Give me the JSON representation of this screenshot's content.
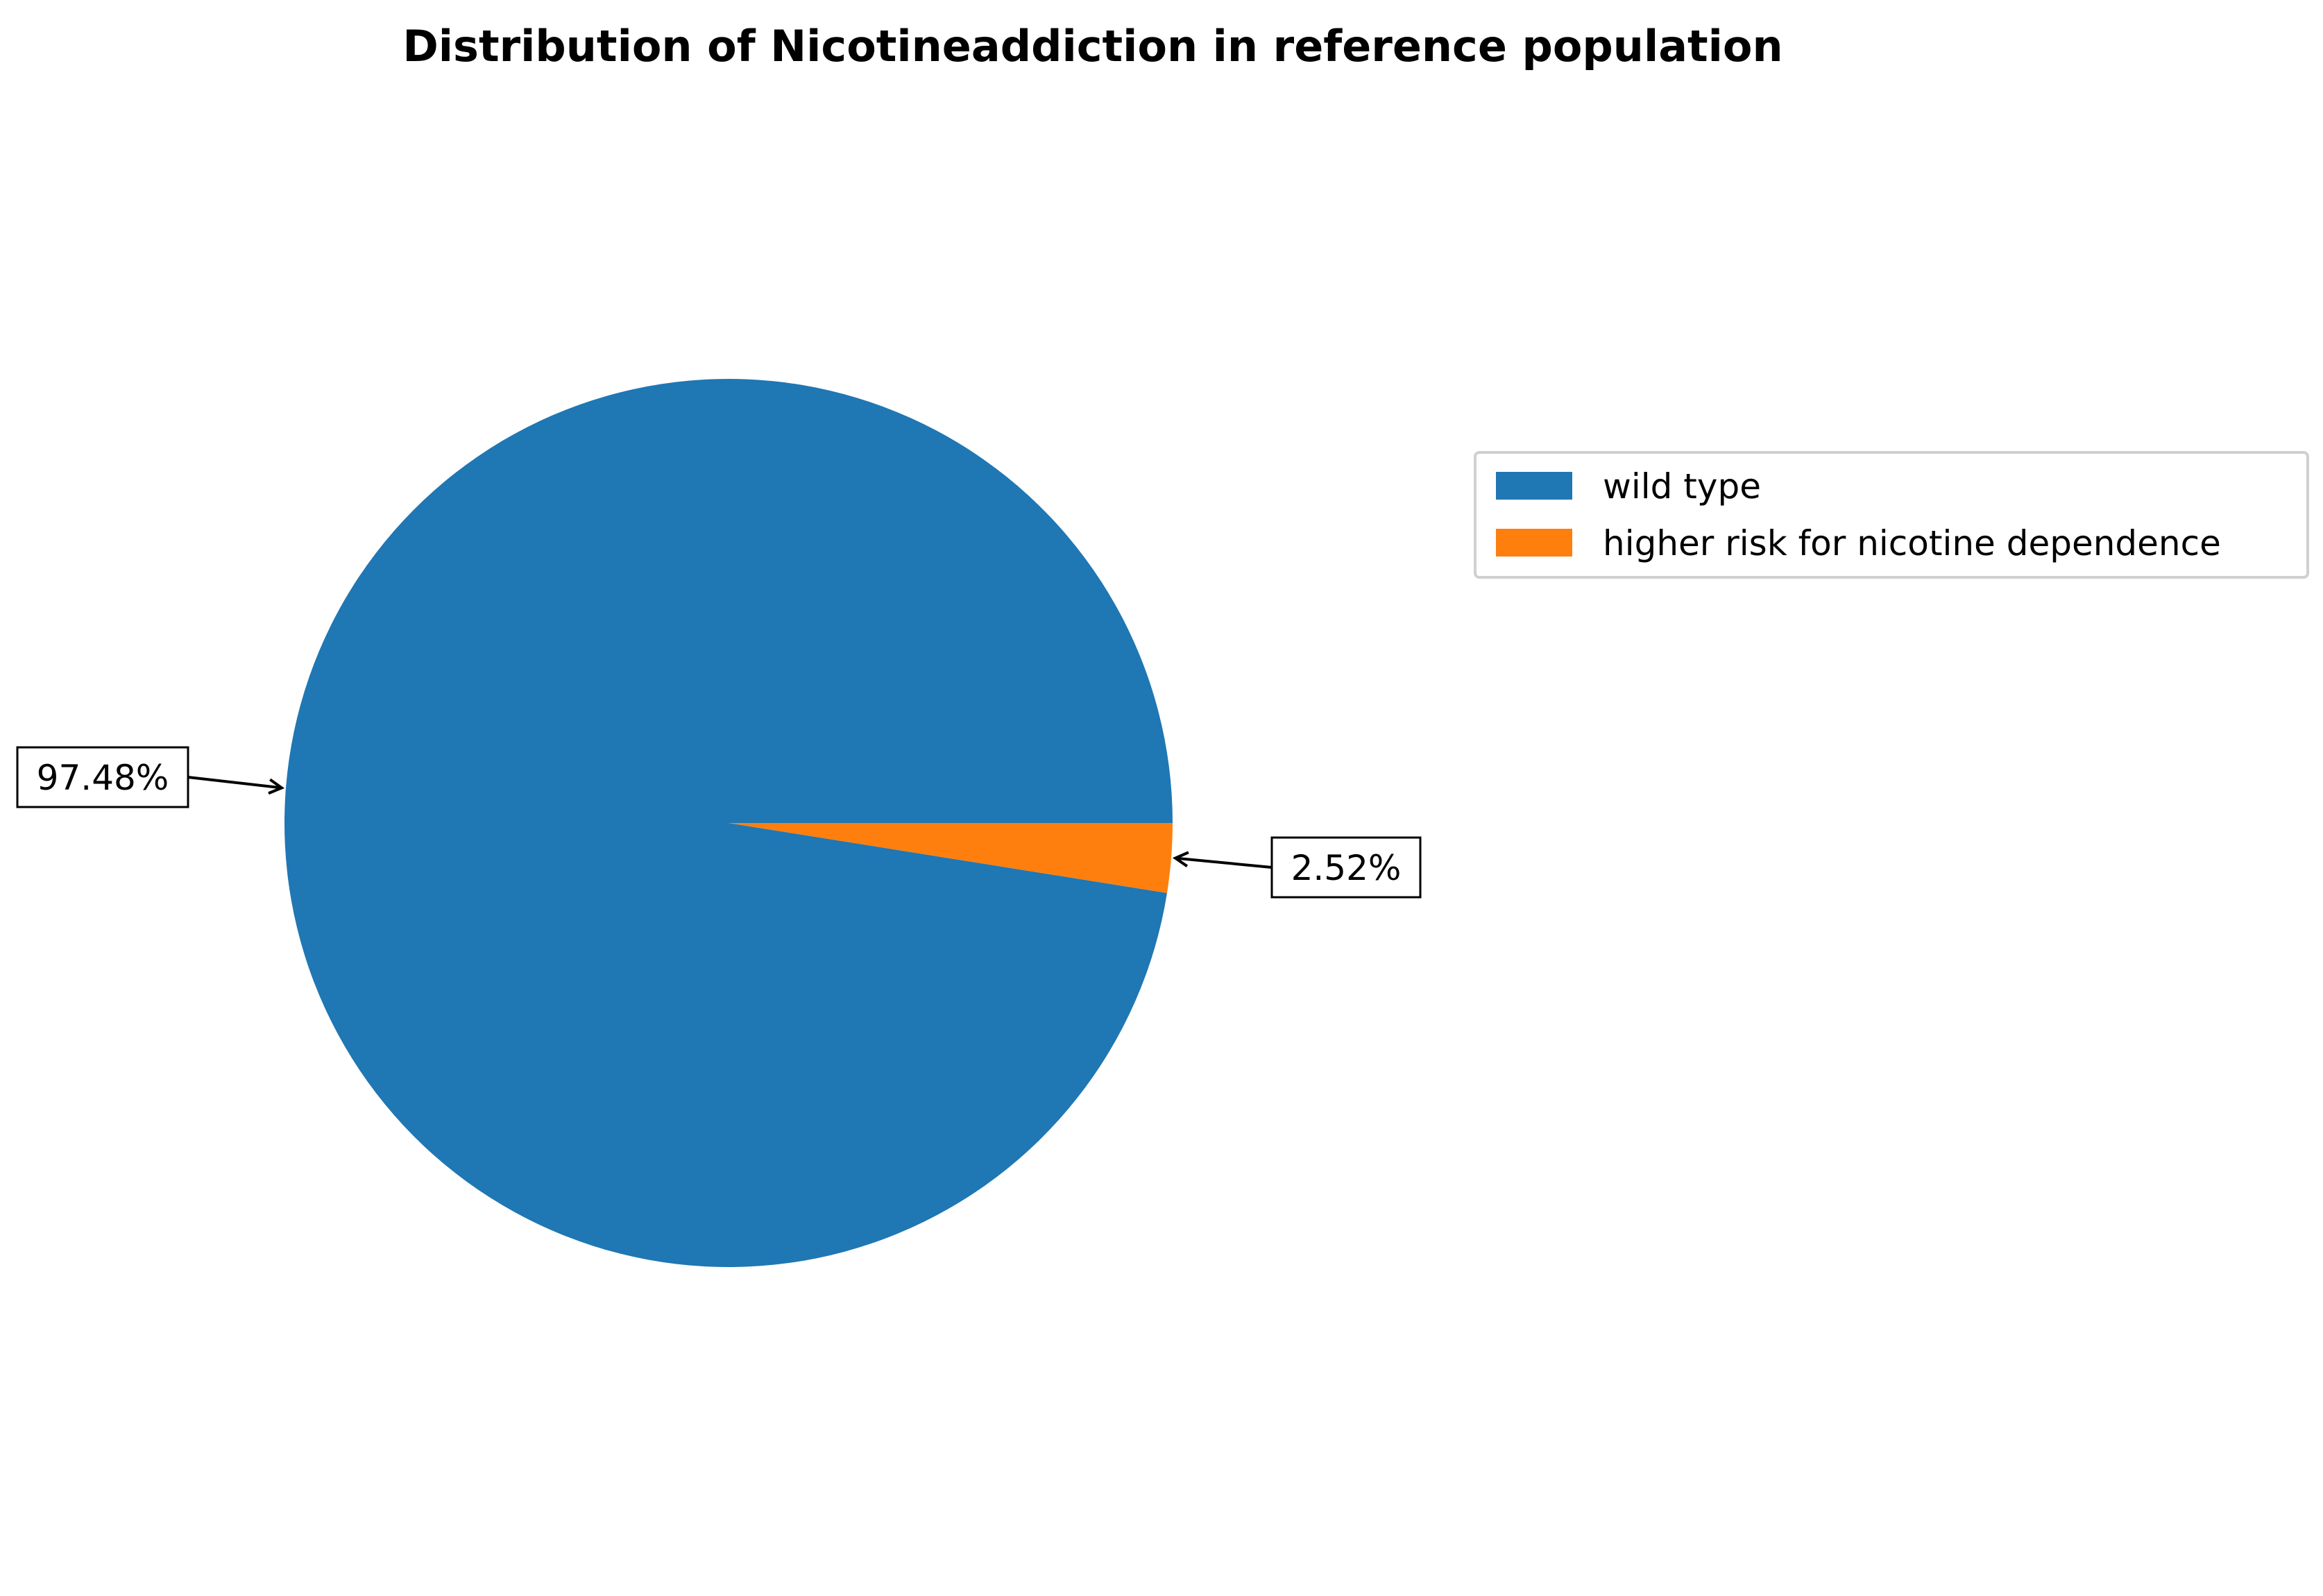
{
  "chart_data": {
    "type": "pie",
    "title": "Distribution of Nicotineaddiction in reference population",
    "slices": [
      {
        "label": "wild type",
        "value": 97.48,
        "display": "97.48%",
        "color": "#1f77b4"
      },
      {
        "label": "higher risk for nicotine dependence",
        "value": 2.52,
        "display": "2.52%",
        "color": "#ff7f0e"
      }
    ],
    "start_angle_deg": 0,
    "direction": "counterclockwise",
    "legend_placement": "right, vertically aligned with upper half of pie"
  }
}
